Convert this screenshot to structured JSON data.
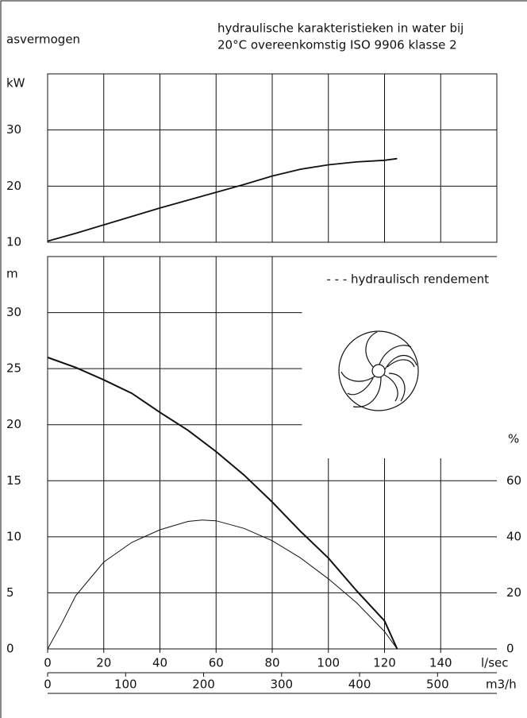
{
  "chart_data": [
    {
      "type": "line",
      "title": "asvermogen",
      "y_label": "kW",
      "ylim": [
        10,
        40
      ],
      "yticks": [
        10,
        20,
        30
      ],
      "xlim": [
        0,
        160
      ],
      "x": [
        0,
        10,
        20,
        30,
        40,
        50,
        60,
        70,
        80,
        90,
        100,
        110,
        120,
        124.5
      ],
      "values": [
        10.2,
        11.6,
        13.1,
        14.6,
        16.1,
        17.5,
        18.9,
        20.3,
        21.8,
        23.0,
        23.8,
        24.3,
        24.6,
        24.9
      ],
      "color": "#111111"
    },
    {
      "type": "line",
      "title_lines": [
        "hydraulische karakteristieken in water bij",
        "20°C overeenkomstig ISO 9906 klasse 2"
      ],
      "y_label": "m",
      "y2_label": "%",
      "x_label": "l/sec",
      "x2_label": "m3/h",
      "ylim": [
        0,
        35
      ],
      "yticks": [
        0,
        5,
        10,
        15,
        20,
        25,
        30
      ],
      "y2lim": [
        0,
        140
      ],
      "y2ticks": [
        0,
        20,
        40,
        60
      ],
      "xlim": [
        0,
        160
      ],
      "xticks": [
        0,
        20,
        40,
        60,
        80,
        100,
        120,
        140
      ],
      "x2lim": [
        0,
        576
      ],
      "x2ticks": [
        0,
        100,
        200,
        300,
        400,
        500
      ],
      "series": [
        {
          "color": "#111111",
          "x": [
            0,
            10,
            20,
            30,
            40,
            50,
            60,
            70,
            80,
            90,
            100,
            110,
            120,
            124.5
          ],
          "values": [
            26,
            25.1,
            24,
            22.8,
            21.1,
            19.5,
            17.6,
            15.5,
            13.1,
            10.5,
            8.1,
            5.2,
            2.5,
            0
          ]
        },
        {
          "name": "- - - hydraulisch rendement",
          "axis": "y2",
          "color": "#111111",
          "x": [
            0,
            5,
            10,
            20,
            30,
            40,
            50,
            55,
            60,
            70,
            80,
            90,
            100,
            110,
            120,
            124.5
          ],
          "values": [
            0,
            9,
            19,
            31,
            38,
            42.5,
            45.5,
            46,
            45.7,
            43,
            38.6,
            32.5,
            25,
            16.5,
            6.2,
            0
          ]
        }
      ]
    }
  ]
}
